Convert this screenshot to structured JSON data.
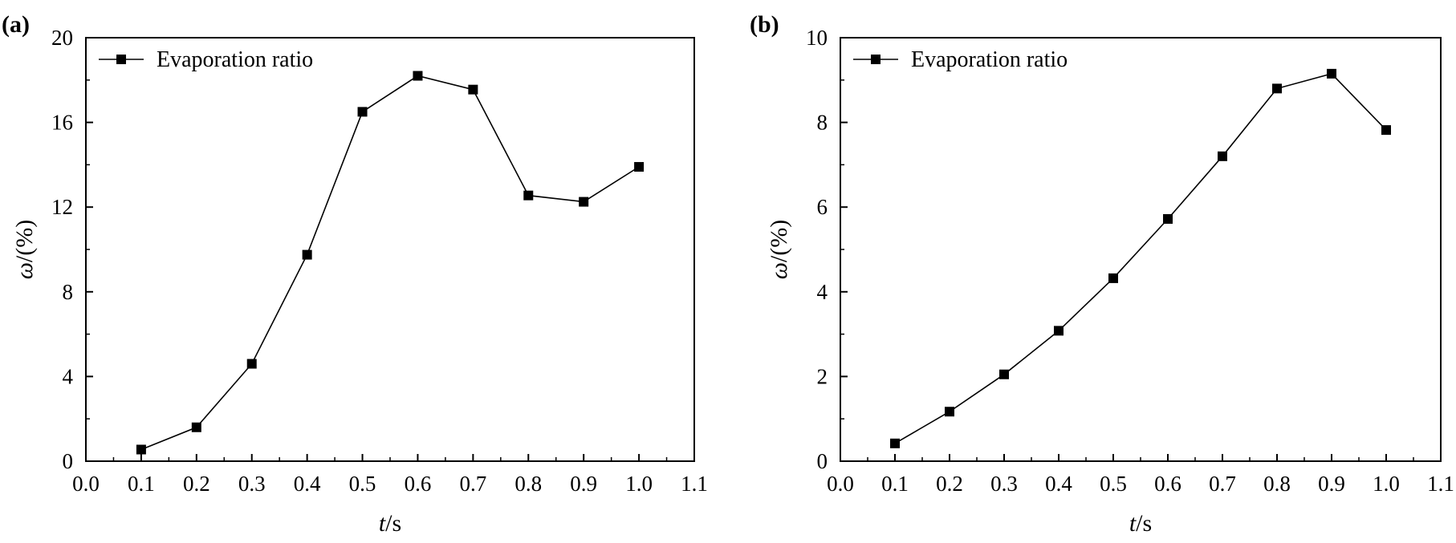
{
  "chart_data": [
    {
      "panel": "(a)",
      "type": "line",
      "series": [
        {
          "name": "Evaporation ratio",
          "x": [
            0.1,
            0.2,
            0.3,
            0.4,
            0.5,
            0.6,
            0.7,
            0.8,
            0.9,
            1.0
          ],
          "values": [
            0.55,
            1.6,
            4.6,
            9.75,
            16.5,
            18.2,
            17.55,
            12.55,
            12.25,
            13.9
          ]
        }
      ],
      "xlabel_var": "t",
      "xlabel_unit": "/s",
      "ylabel_var": "ω",
      "ylabel_unit": "/(%)",
      "xlim": [
        0.0,
        1.1
      ],
      "ylim": [
        0,
        20
      ],
      "xticks": [
        "0.0",
        "0.1",
        "0.2",
        "0.3",
        "0.4",
        "0.5",
        "0.6",
        "0.7",
        "0.8",
        "0.9",
        "1.0",
        "1.1"
      ],
      "yticks": [
        "0",
        "4",
        "8",
        "12",
        "16",
        "20"
      ],
      "legend_position": "top-left"
    },
    {
      "panel": "(b)",
      "type": "line",
      "series": [
        {
          "name": "Evaporation ratio",
          "x": [
            0.1,
            0.2,
            0.3,
            0.4,
            0.5,
            0.6,
            0.7,
            0.8,
            0.9,
            1.0
          ],
          "values": [
            0.42,
            1.17,
            2.05,
            3.08,
            4.32,
            5.72,
            7.2,
            8.8,
            9.15,
            7.82
          ]
        }
      ],
      "xlabel_var": "t",
      "xlabel_unit": "/s",
      "ylabel_var": "ω",
      "ylabel_unit": "/(%)",
      "xlim": [
        0.0,
        1.1
      ],
      "ylim": [
        0,
        10
      ],
      "xticks": [
        "0.0",
        "0.1",
        "0.2",
        "0.3",
        "0.4",
        "0.5",
        "0.6",
        "0.7",
        "0.8",
        "0.9",
        "1.0",
        "1.1"
      ],
      "yticks": [
        "0",
        "2",
        "4",
        "6",
        "8",
        "10"
      ],
      "legend_position": "top-left"
    }
  ]
}
